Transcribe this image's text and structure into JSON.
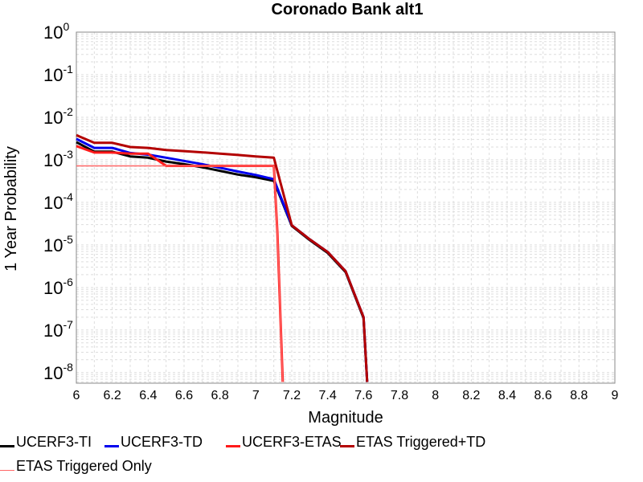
{
  "chart_data": {
    "type": "line",
    "title": "Coronado Bank alt1",
    "xlabel": "Magnitude",
    "ylabel": "1 Year Probability",
    "xlim": [
      6,
      9
    ],
    "ylim_log10": [
      -8.25,
      0
    ],
    "y_scale": "log",
    "grid": true,
    "x_ticks": [
      "6",
      "6.2",
      "6.4",
      "6.6",
      "6.8",
      "7",
      "7.2",
      "7.4",
      "7.6",
      "7.8",
      "8",
      "8.2",
      "8.4",
      "8.6",
      "8.8",
      "9"
    ],
    "y_tick_base": "10",
    "y_tick_exponents": [
      "0",
      "-1",
      "-2",
      "-3",
      "-4",
      "-5",
      "-6",
      "-7",
      "-8"
    ],
    "legend_placement": "bottom",
    "series": [
      {
        "name": "UCERF3-TI",
        "color": "#000000",
        "width": 3,
        "x": [
          6.0,
          6.1,
          6.2,
          6.3,
          6.4,
          6.5,
          6.6,
          6.7,
          6.8,
          6.9,
          7.0,
          7.1,
          7.2,
          7.3,
          7.4,
          7.5,
          7.6,
          7.62
        ],
        "y": [
          0.0026,
          0.00155,
          0.00155,
          0.0012,
          0.00112,
          0.00091,
          0.00079,
          0.00067,
          0.00055,
          0.00045,
          0.00039,
          0.00032,
          2.8e-05,
          1.3e-05,
          6.5e-06,
          2.3e-06,
          1.9e-07,
          6e-09
        ]
      },
      {
        "name": "UCERF3-TD",
        "color": "#0000ee",
        "width": 3,
        "x": [
          6.0,
          6.1,
          6.2,
          6.3,
          6.4,
          6.5,
          6.6,
          6.7,
          6.8,
          6.9,
          7.0,
          7.1,
          7.2,
          7.3,
          7.4,
          7.5,
          7.6,
          7.62
        ],
        "y": [
          0.0031,
          0.0019,
          0.0019,
          0.00145,
          0.00132,
          0.00112,
          0.00094,
          0.00079,
          0.00065,
          0.00053,
          0.00044,
          0.00035,
          2.9e-05,
          1.35e-05,
          6.8e-06,
          2.4e-06,
          2e-07,
          6e-09
        ]
      },
      {
        "name": "UCERF3-ETAS",
        "color": "#ff1a1a",
        "width": 3,
        "x": [
          6.0,
          6.1,
          6.2,
          6.3,
          6.4,
          6.5,
          6.6,
          6.7,
          6.8,
          6.9,
          7.0,
          7.1,
          7.12,
          7.15
        ],
        "y": [
          0.0021,
          0.00148,
          0.00148,
          0.0014,
          0.0014,
          0.00072,
          0.00072,
          0.00072,
          0.00072,
          0.00072,
          0.00072,
          0.00072,
          2e-05,
          6e-09
        ]
      },
      {
        "name": "ETAS Triggered+TD",
        "color": "#b30000",
        "width": 3,
        "x": [
          6.0,
          6.1,
          6.2,
          6.3,
          6.4,
          6.5,
          6.6,
          6.7,
          6.8,
          6.9,
          7.0,
          7.1,
          7.2,
          7.3,
          7.4,
          7.5,
          7.6,
          7.62
        ],
        "y": [
          0.0038,
          0.0025,
          0.0025,
          0.002,
          0.0019,
          0.0017,
          0.0016,
          0.0015,
          0.0014,
          0.0013,
          0.0012,
          0.00112,
          2.9e-05,
          1.35e-05,
          6.8e-06,
          2.4e-06,
          2e-07,
          6e-09
        ]
      },
      {
        "name": "ETAS Triggered Only",
        "color": "#ff6666",
        "width": 1.5,
        "x": [
          6.0,
          7.1,
          7.12,
          7.15
        ],
        "y": [
          0.00072,
          0.00072,
          2e-05,
          6e-09
        ]
      }
    ]
  }
}
